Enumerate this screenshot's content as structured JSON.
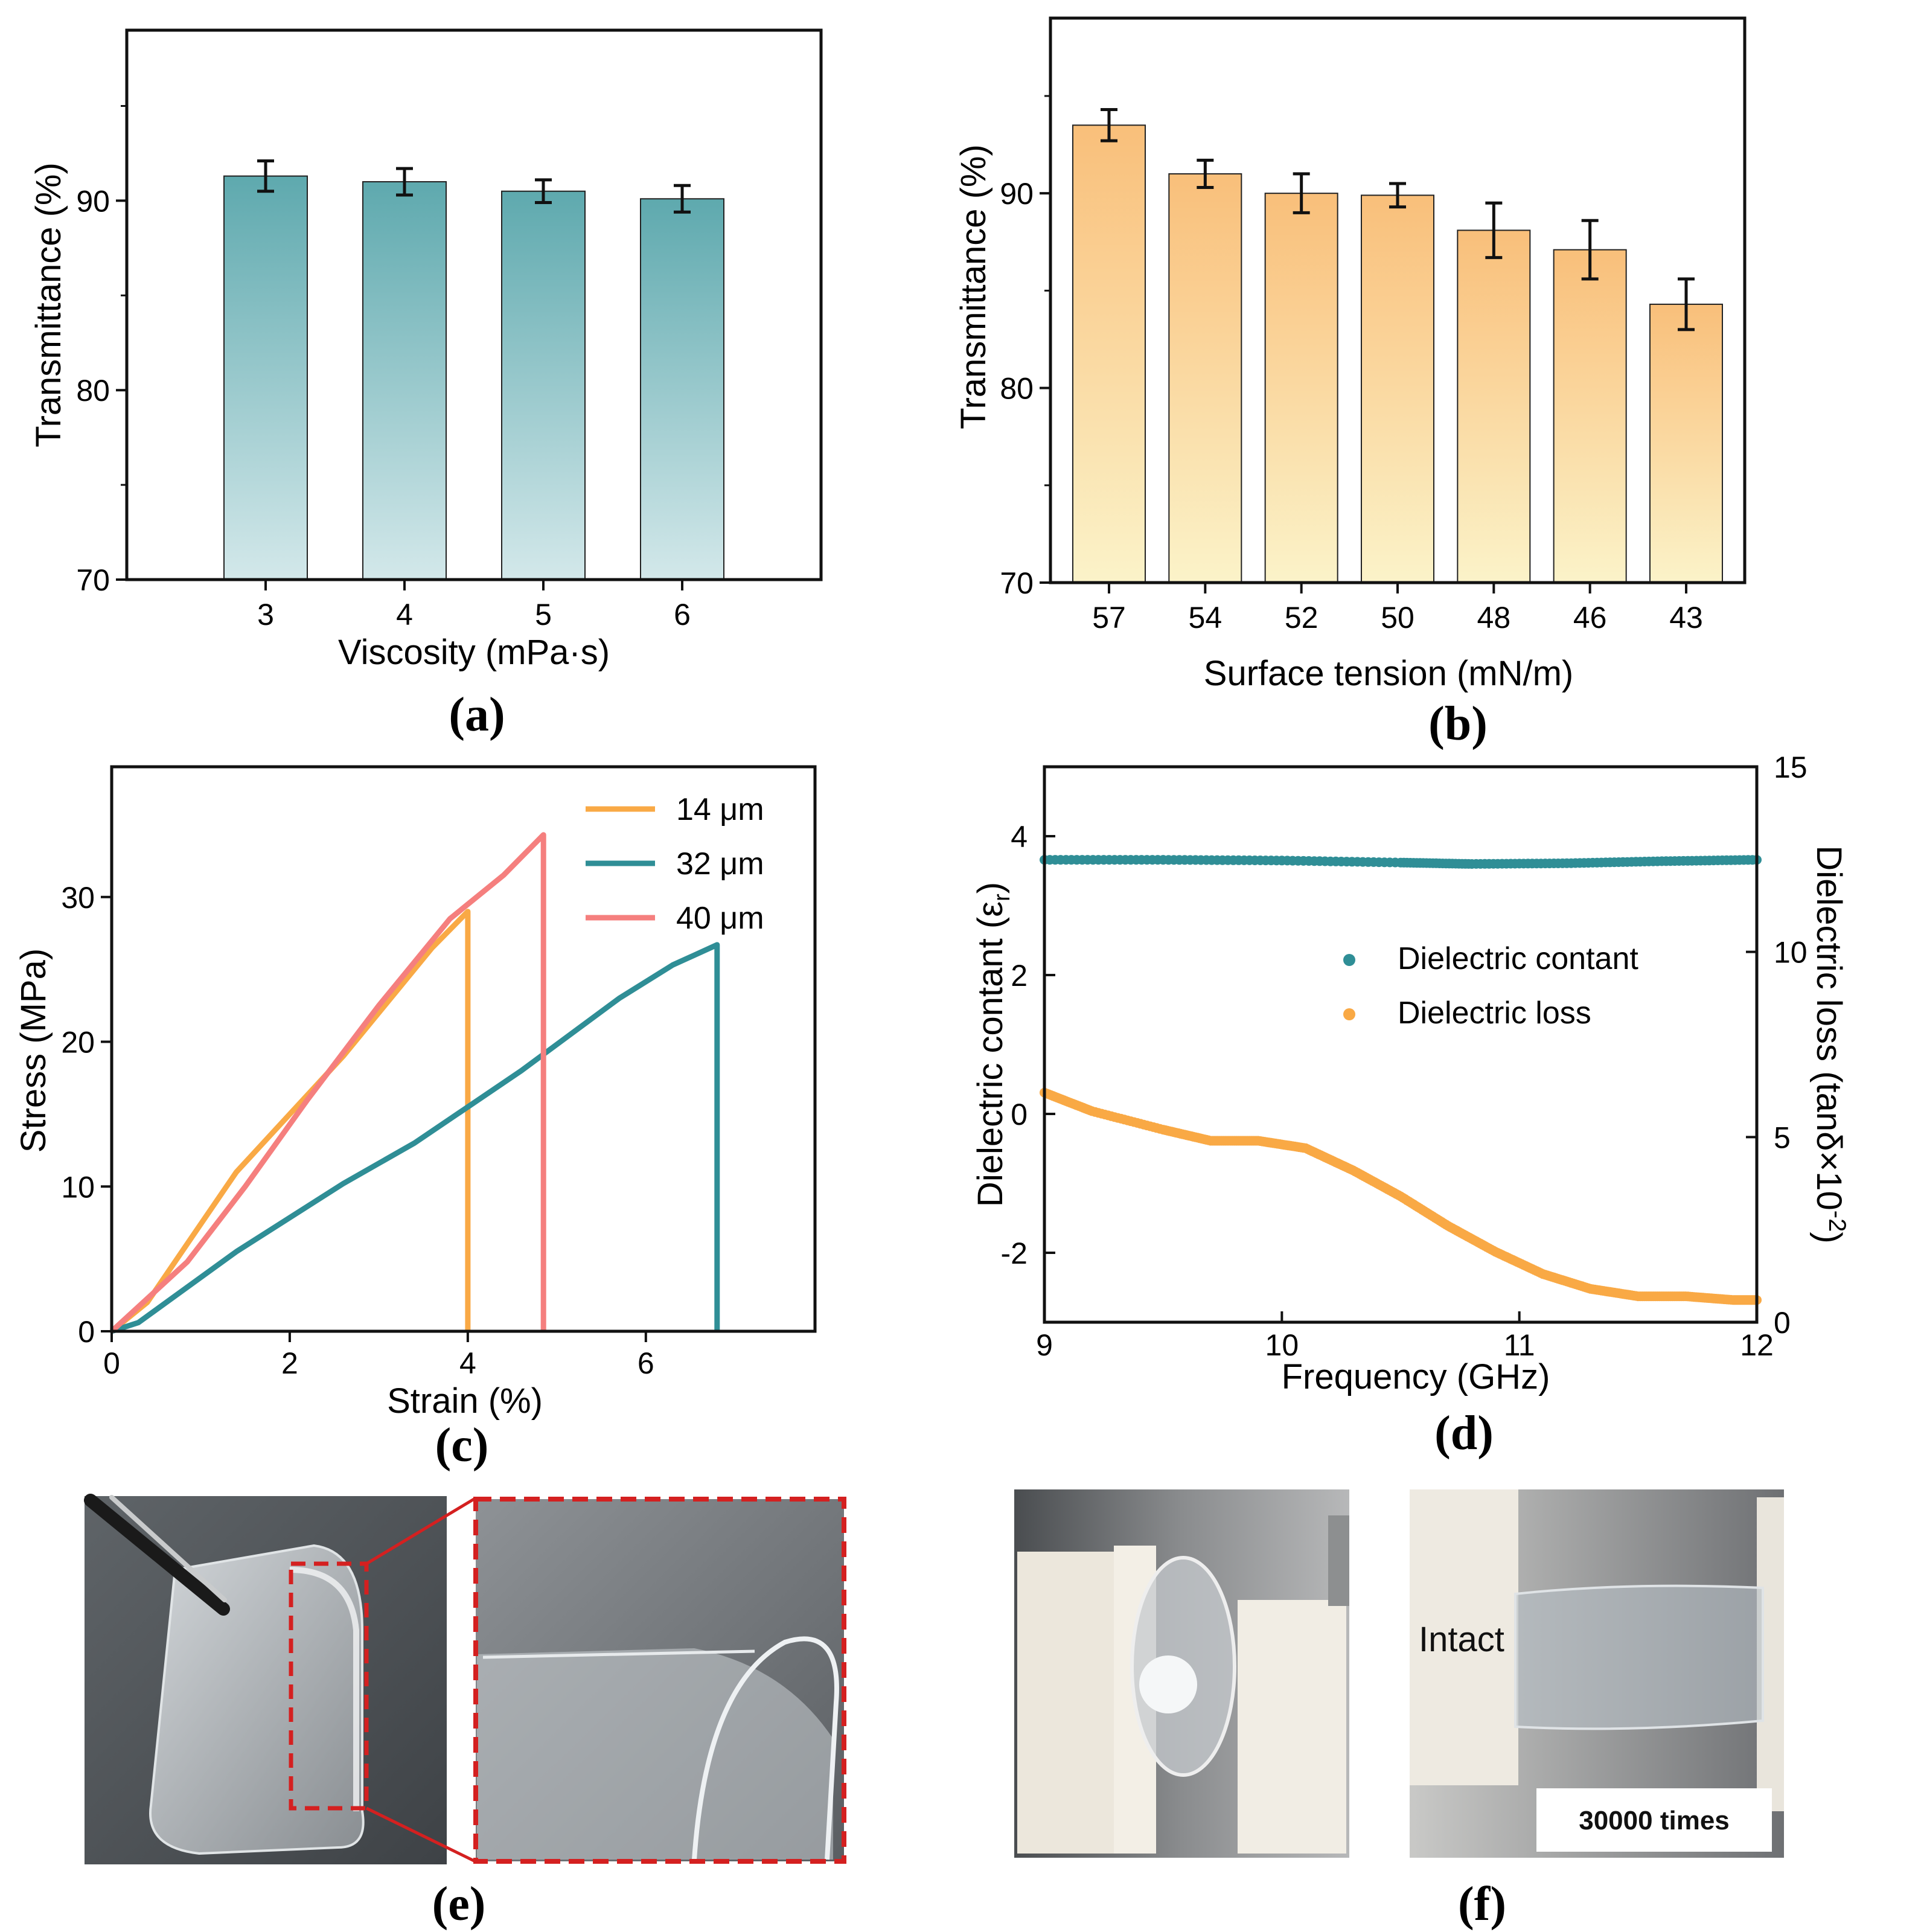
{
  "colors": {
    "teal": "#2f8e96",
    "orange": "#f9a945",
    "salmon": "#f57f7e",
    "red_dash": "#d42020",
    "bar_a_top": "#5ea9ae",
    "bar_a_bottom": "#d3e8ea",
    "bar_b_top": "#f9bf7a",
    "bar_b_bottom": "#fbf3c9"
  },
  "chart_data": [
    {
      "id": "a",
      "type": "bar",
      "panel_label": "(a)",
      "categories": [
        "3",
        "4",
        "5",
        "6"
      ],
      "values": [
        91.3,
        91.0,
        90.5,
        90.1
      ],
      "errors": [
        0.8,
        0.7,
        0.6,
        0.7
      ],
      "xlabel": "Viscosity (mPa·s)",
      "ylabel": "Transmittance (%)",
      "ylim": [
        70,
        99
      ],
      "yticks": [
        70,
        80,
        90
      ]
    },
    {
      "id": "b",
      "type": "bar",
      "panel_label": "(b)",
      "categories": [
        "57",
        "54",
        "52",
        "50",
        "48",
        "46",
        "43"
      ],
      "values": [
        93.5,
        91.0,
        90.0,
        89.9,
        88.1,
        87.1,
        84.3
      ],
      "errors": [
        0.8,
        0.7,
        1.0,
        0.6,
        1.4,
        1.5,
        1.3
      ],
      "xlabel": "Surface tension (mN/m)",
      "ylabel": "Transmittance (%)",
      "ylim": [
        70,
        99
      ],
      "yticks": [
        70,
        80,
        90
      ]
    },
    {
      "id": "c",
      "type": "line",
      "panel_label": "(c)",
      "xlabel": "Strain (%)",
      "ylabel": "Stress (MPa)",
      "xlim": [
        0,
        7.9
      ],
      "ylim": [
        0,
        39
      ],
      "xticks": [
        0,
        2,
        4,
        6
      ],
      "yticks": [
        0,
        10,
        20,
        30
      ],
      "legend_position": "top-right",
      "series": [
        {
          "name": "14 μm",
          "color_key": "orange",
          "x": [
            0,
            0.4,
            0.9,
            1.4,
            2.0,
            2.6,
            3.2,
            3.6,
            4.0,
            4.0
          ],
          "y": [
            0,
            2.0,
            6.5,
            11.0,
            15.0,
            19.0,
            23.5,
            26.5,
            29.0,
            0
          ]
        },
        {
          "name": "32 μm",
          "color_key": "teal",
          "x": [
            0,
            0.3,
            1.4,
            2.6,
            3.4,
            4.6,
            5.7,
            6.3,
            6.8,
            6.8
          ],
          "y": [
            0,
            0.6,
            5.5,
            10.2,
            13.0,
            18.0,
            23.0,
            25.3,
            26.7,
            0
          ]
        },
        {
          "name": "40 μm",
          "color_key": "salmon",
          "x": [
            0,
            0.85,
            1.5,
            2.2,
            3.0,
            3.8,
            4.4,
            4.85,
            4.85
          ],
          "y": [
            0,
            4.8,
            10.0,
            16.0,
            22.5,
            28.5,
            31.5,
            34.3,
            0
          ]
        }
      ]
    },
    {
      "id": "d",
      "type": "scatter",
      "panel_label": "(d)",
      "xlabel": "Frequency (GHz)",
      "ylabel": "Dielectric contant (ε",
      "ylabel_sub": "r",
      "ylabel_close": ")",
      "y2label": "Dielectric loss (tanδ×10",
      "y2label_sup": "-2",
      "y2label_close": ")",
      "xlim": [
        9,
        12
      ],
      "ylim": [
        -3,
        5
      ],
      "y2lim": [
        0,
        15
      ],
      "xticks": [
        9,
        10,
        11,
        12
      ],
      "yticks": [
        -2,
        0,
        2,
        4
      ],
      "y2ticks": [
        0,
        5,
        10,
        15
      ],
      "legend_position": "center-right",
      "series": [
        {
          "name": "Dielectric contant",
          "axis": "left",
          "color_key": "teal",
          "x": [
            9.0,
            9.5,
            10.0,
            10.5,
            10.8,
            11.2,
            11.6,
            12.0
          ],
          "y": [
            3.66,
            3.66,
            3.65,
            3.62,
            3.6,
            3.61,
            3.64,
            3.66
          ]
        },
        {
          "name": "Dielectric loss",
          "axis": "right",
          "color_key": "orange",
          "x": [
            9.0,
            9.2,
            9.5,
            9.7,
            9.9,
            10.1,
            10.3,
            10.5,
            10.7,
            10.9,
            11.1,
            11.3,
            11.5,
            11.7,
            11.9,
            12.0
          ],
          "y": [
            6.2,
            5.7,
            5.2,
            4.9,
            4.9,
            4.7,
            4.1,
            3.4,
            2.6,
            1.9,
            1.3,
            0.9,
            0.7,
            0.7,
            0.6,
            0.6
          ]
        }
      ]
    }
  ],
  "photos": {
    "e_label": "(e)",
    "f_label": "(f)",
    "f_intact": "Intact",
    "f_cycles": "30000 times"
  }
}
